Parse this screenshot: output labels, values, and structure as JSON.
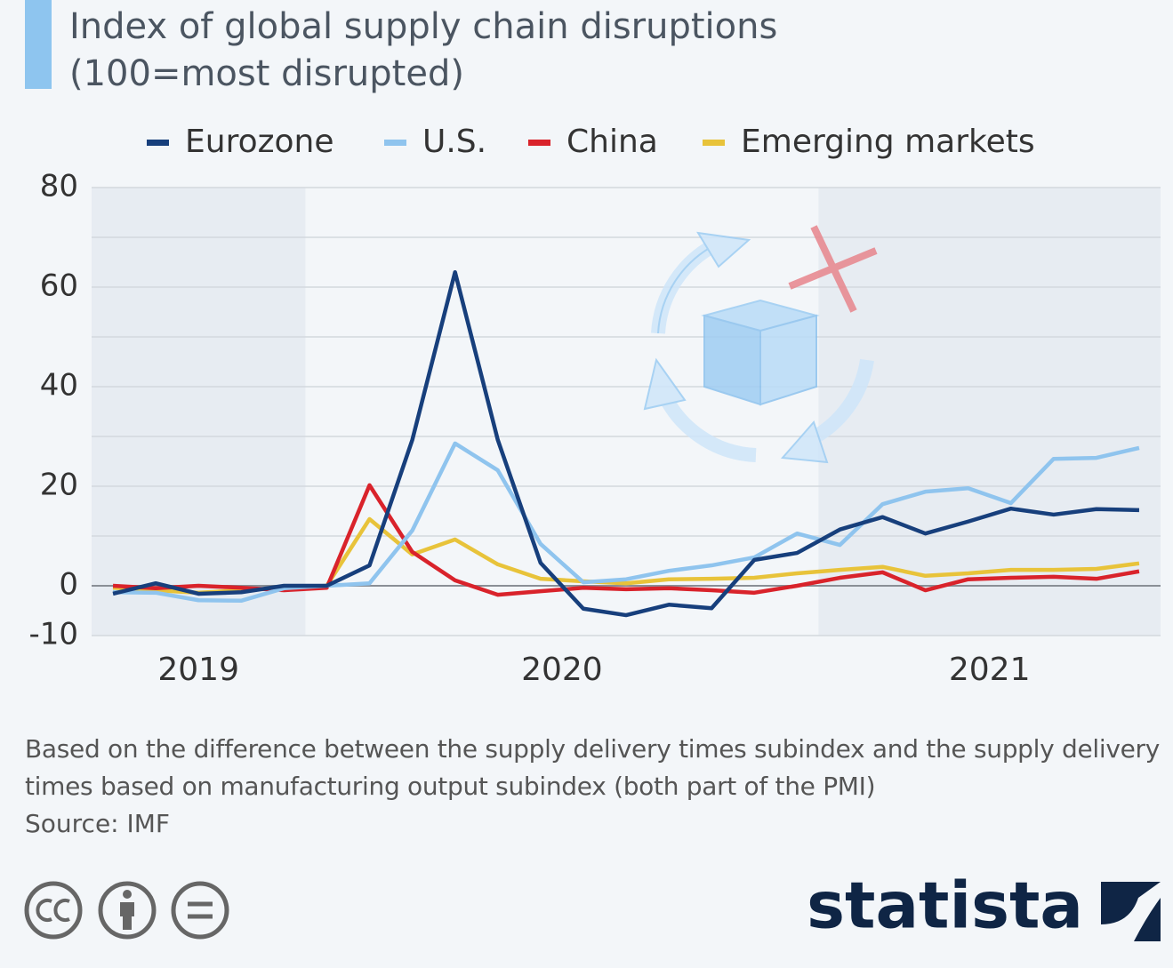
{
  "chart_data": {
    "type": "line",
    "title": "Index of global supply chain disruptions",
    "subtitle": "(100=most disrupted)",
    "categories": [
      null,
      null,
      null,
      null,
      null,
      null,
      null,
      null,
      null,
      null,
      null,
      null,
      null,
      null,
      null,
      null,
      null,
      null,
      null,
      null,
      null,
      null,
      null,
      null,
      null
    ],
    "periods": [
      {
        "label": "2019",
        "months": 5
      },
      {
        "label": "2020",
        "months": 12
      },
      {
        "label": "2021",
        "months": 8
      }
    ],
    "series": [
      {
        "name": "Eurozone",
        "color": "#173f7c",
        "values": [
          -1.6,
          0.5,
          -1.6,
          -1.3,
          0,
          0,
          4.1,
          29.3,
          63,
          29.3,
          4.6,
          -4.6,
          -5.9,
          -3.8,
          -4.5,
          5.2,
          6.6,
          11.3,
          13.8,
          10.5,
          12.9,
          15.5,
          14.3,
          15.4,
          15.2
        ]
      },
      {
        "name": "U.S.",
        "color": "#8fc4ee",
        "values": [
          -1.3,
          -1.4,
          -2.9,
          -3.0,
          -0.5,
          0,
          0.5,
          11.1,
          28.6,
          23.2,
          8.4,
          0.7,
          1.3,
          3.0,
          4.1,
          5.7,
          10.5,
          8.2,
          16.4,
          18.9,
          19.6,
          16.6,
          25.5,
          25.7,
          27.7
        ]
      },
      {
        "name": "China",
        "color": "#d9232b",
        "values": [
          0,
          -0.5,
          0,
          -0.4,
          -0.9,
          -0.4,
          20.2,
          6.8,
          1.1,
          -1.8,
          -1.1,
          -0.4,
          -0.7,
          -0.5,
          -0.9,
          -1.4,
          0,
          1.6,
          2.7,
          -0.9,
          1.3,
          1.6,
          1.8,
          1.4,
          2.9
        ]
      },
      {
        "name": "Emerging markets",
        "color": "#e8c33a",
        "values": [
          -0.4,
          -0.9,
          -1.4,
          -0.9,
          -0.4,
          0,
          13.4,
          6.3,
          9.3,
          4.3,
          1.4,
          0.9,
          0.5,
          1.3,
          1.4,
          1.6,
          2.5,
          3.2,
          3.8,
          2.0,
          2.5,
          3.2,
          3.2,
          3.4,
          4.5
        ]
      }
    ],
    "ylim": [
      -10,
      80
    ],
    "yticks": [
      -10,
      0,
      20,
      40,
      60,
      80
    ],
    "minor_yticks": [
      10,
      30,
      50,
      70
    ],
    "grid": true,
    "note": "Based on the difference between the supply delivery times subindex and the supply delivery times based on manufacturing output subindex (both part of the PMI)",
    "source": "Source: IMF",
    "brand": "statista"
  }
}
